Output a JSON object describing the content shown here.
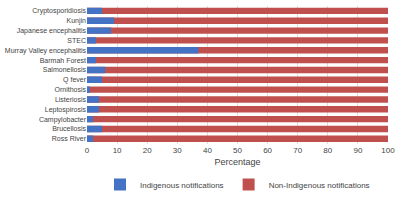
{
  "chart_data": {
    "type": "bar",
    "orientation": "horizontal",
    "stacked": false,
    "categories": [
      "Cryptosporidiosis",
      "Kunjin",
      "Japanese encephalitis",
      "STEC",
      "Murray Valley encephalitis",
      "Barmah Forest",
      "Salmonellosis",
      "Q fever",
      "Ornithosis",
      "Listeriosis",
      "Leptospirosis",
      "Campylobacter",
      "Brucellosis",
      "Ross River"
    ],
    "series": [
      {
        "name": "Non-Indigenous notifications",
        "color": "#C0504D",
        "values": [
          100,
          100,
          100,
          100,
          100,
          100,
          100,
          100,
          100,
          100,
          100,
          100,
          100,
          100
        ]
      },
      {
        "name": "Indigenous notifications",
        "color": "#4472C4",
        "values": [
          5.0,
          9.0,
          8.0,
          3.0,
          37.0,
          3.0,
          6.0,
          5.0,
          1.0,
          4.0,
          4.0,
          2.0,
          5.0,
          2.0
        ]
      }
    ],
    "xlabel": "Percentage",
    "xlim": [
      0,
      100
    ],
    "xticks": [
      0,
      10,
      20,
      30,
      40,
      50,
      60,
      70,
      80,
      90,
      100
    ],
    "grid": true,
    "legend": "bottom"
  }
}
